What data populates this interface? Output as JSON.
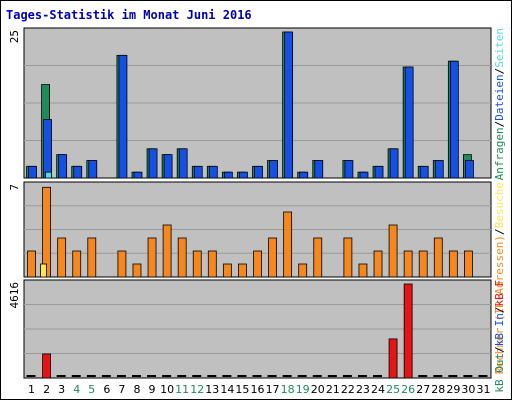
{
  "chart_data": {
    "type": "bar",
    "title": "Tages-Statistik im Monat Juni 2016",
    "categories": [
      "1",
      "2",
      "3",
      "4",
      "5",
      "6",
      "7",
      "8",
      "9",
      "10",
      "11",
      "12",
      "13",
      "14",
      "15",
      "16",
      "17",
      "18",
      "19",
      "20",
      "21",
      "22",
      "23",
      "24",
      "25",
      "26",
      "27",
      "28",
      "29",
      "30",
      "31"
    ],
    "weekend_days": [
      "4",
      "5",
      "11",
      "12",
      "18",
      "19",
      "25",
      "26"
    ],
    "panels": [
      {
        "name": "requests",
        "ymax_label": "25",
        "ylim": [
          0,
          25
        ],
        "series": [
          {
            "color": "#1e8c5a",
            "values": [
              2,
              16,
              4,
              2,
              3,
              0,
              21,
              1,
              5,
              4,
              5,
              2,
              2,
              1,
              1,
              2,
              3,
              25,
              1,
              3,
              0,
              3,
              1,
              2,
              5,
              19,
              2,
              3,
              20,
              4,
              0
            ]
          },
          {
            "color": "#1450e6",
            "values": [
              2,
              10,
              4,
              2,
              3,
              0,
              21,
              1,
              5,
              4,
              5,
              2,
              2,
              1,
              1,
              2,
              3,
              25,
              1,
              3,
              0,
              3,
              1,
              2,
              5,
              19,
              2,
              3,
              20,
              3,
              0
            ]
          },
          {
            "color": "#50dce6",
            "values": [
              0,
              1,
              0,
              0,
              0,
              0,
              0,
              0,
              0,
              0,
              0,
              0,
              0,
              0,
              0,
              0,
              0,
              0,
              0,
              0,
              0,
              0,
              0,
              0,
              0,
              0,
              0,
              0,
              0,
              0,
              0
            ]
          }
        ]
      },
      {
        "name": "visits",
        "ymax_label": "7",
        "ylim": [
          0,
          7
        ],
        "series": [
          {
            "color": "#f5871e",
            "values": [
              2,
              6.9,
              3,
              2,
              3,
              0,
              2,
              1,
              3,
              4,
              3,
              2,
              2,
              1,
              1,
              2,
              3,
              5,
              1,
              3,
              0,
              3,
              1,
              2,
              4,
              2,
              2,
              3,
              2,
              2,
              0
            ]
          },
          {
            "color": "#ffe650",
            "values": [
              0,
              1,
              0,
              0,
              0,
              0,
              0,
              0,
              0,
              0,
              0,
              0,
              0,
              0,
              0,
              0,
              0,
              0,
              0,
              0,
              0,
              0,
              0,
              0,
              0,
              0,
              0,
              0,
              0,
              0,
              0
            ]
          }
        ]
      },
      {
        "name": "traffic",
        "ymax_label": "4616",
        "ylim": [
          0,
          4616
        ],
        "series": [
          {
            "color": "#e61414",
            "values": [
              0,
              1180,
              0,
              0,
              0,
              0,
              0,
              0,
              0,
              0,
              0,
              0,
              0,
              0,
              0,
              0,
              0,
              0,
              0,
              0,
              0,
              0,
              0,
              0,
              1920,
              4616,
              0,
              0,
              0,
              0,
              0
            ]
          }
        ]
      }
    ],
    "legend_top": [
      {
        "text": "Anfragen",
        "color": "#1e8c5a"
      },
      {
        "text": "/",
        "color": "#000000"
      },
      {
        "text": "Dateien",
        "color": "#1450e6"
      },
      {
        "text": "/",
        "color": "#000000"
      },
      {
        "text": "Seiten",
        "color": "#50dce6"
      }
    ],
    "legend_middle": [
      {
        "text": "Rechner (IP-Adressen)",
        "color": "#f5871e"
      },
      {
        "text": "/",
        "color": "#000000"
      },
      {
        "text": "Besuche",
        "color": "#ffe650"
      }
    ],
    "legend_bottom": [
      {
        "text": "kB Out",
        "color": "#1e8c5a"
      },
      {
        "text": "/",
        "color": "#000000"
      },
      {
        "text": "kB In",
        "color": "#1450e6"
      },
      {
        "text": "/",
        "color": "#000000"
      },
      {
        "text": "kB F",
        "color": "#e61414"
      }
    ],
    "colors": {
      "plot_background": "#c0c0c0",
      "weekday_label": "#000000",
      "weekend_label": "#1e8c5a",
      "title": "#0000b4"
    }
  }
}
